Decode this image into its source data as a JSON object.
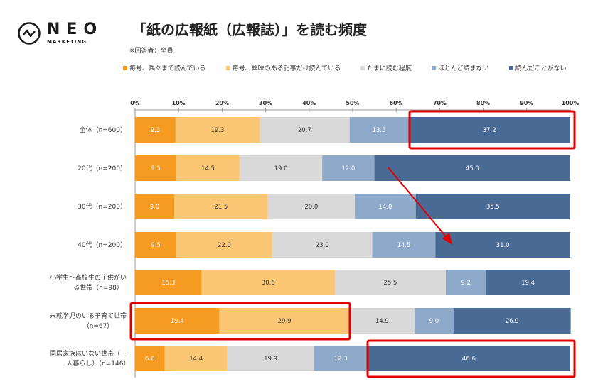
{
  "logo": {
    "main": "NEO",
    "sub": "MARKETING"
  },
  "chart_data": {
    "type": "bar",
    "orientation": "horizontal-stacked-100",
    "title": "「紙の広報紙（広報誌）」を読む頻度",
    "note": "※回答者：全員",
    "xlim": [
      0,
      100
    ],
    "ticks": [
      "0%",
      "10%",
      "20%",
      "30%",
      "40%",
      "50%",
      "60%",
      "70%",
      "80%",
      "90%",
      "100%"
    ],
    "legend_placement": "top",
    "categories": [
      "全体（n=600）",
      "20代（n=200）",
      "30代（n=200）",
      "40代（n=200）",
      "小学生～高校生の子供がいる世帯（n=98）",
      "未就学児のいる子育て世帯（n=67）",
      "同居家族はいない世帯（一人暮らし）（n=146）"
    ],
    "series": [
      {
        "name": "毎号、隅々まで読んでいる",
        "color": "#F59B22",
        "label_color": "#ffffff",
        "values": [
          9.3,
          9.5,
          9.0,
          9.5,
          15.3,
          19.4,
          6.8
        ]
      },
      {
        "name": "毎号、興味のある記事だけ読んでいる",
        "color": "#FBC774",
        "label_color": "#333333",
        "values": [
          19.3,
          14.5,
          21.5,
          22.0,
          30.6,
          29.9,
          14.4
        ]
      },
      {
        "name": "たまに読む程度",
        "color": "#D9D9D9",
        "label_color": "#333333",
        "values": [
          20.7,
          19.0,
          20.0,
          23.0,
          25.5,
          14.9,
          19.9
        ]
      },
      {
        "name": "ほとんど読まない",
        "color": "#8EA9C9",
        "label_color": "#ffffff",
        "values": [
          13.5,
          12.0,
          14.0,
          14.5,
          9.2,
          9.0,
          12.3
        ]
      },
      {
        "name": "読んだことがない",
        "color": "#4A6A96",
        "label_color": "#ffffff",
        "values": [
          37.2,
          45.0,
          35.5,
          31.0,
          19.4,
          26.9,
          46.6
        ]
      }
    ],
    "highlight_color": "#E00000"
  }
}
